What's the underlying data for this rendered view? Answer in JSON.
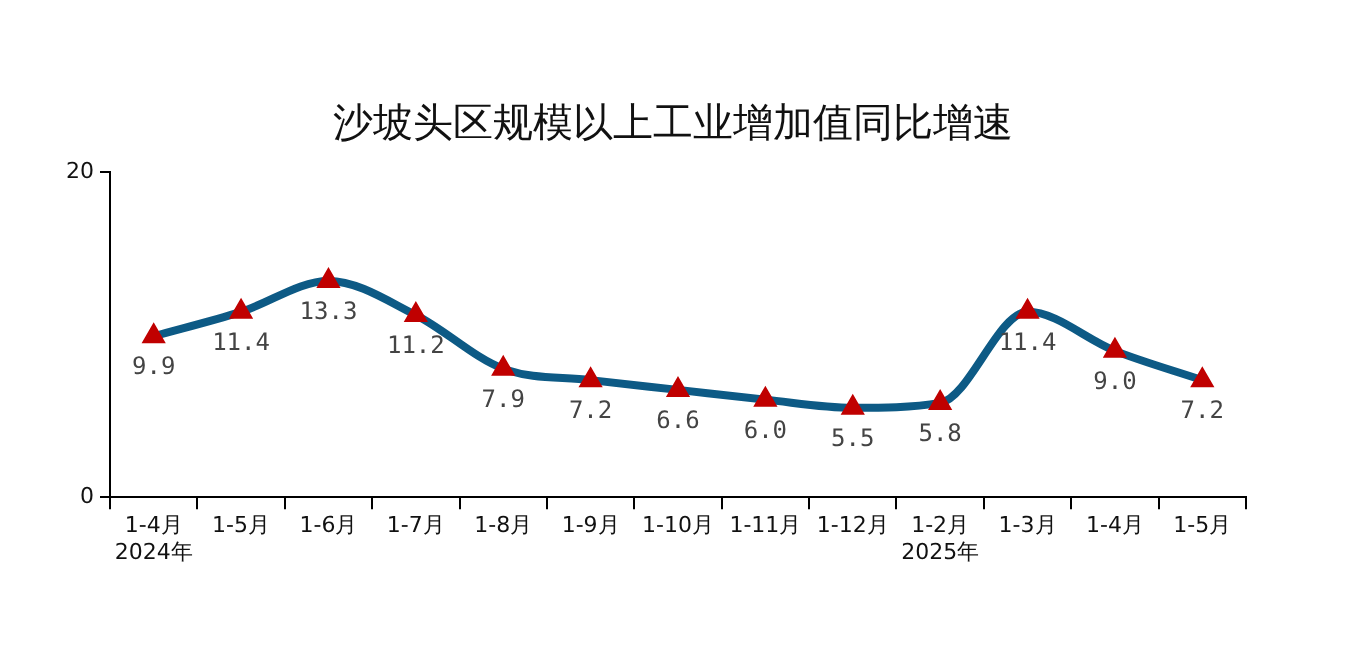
{
  "chart_data": {
    "type": "line",
    "title": "沙坡头区规模以上工业增加值同比增速",
    "categories": [
      "1-4月\n2024年",
      "1-5月",
      "1-6月",
      "1-7月",
      "1-8月",
      "1-9月",
      "1-10月",
      "1-11月",
      "1-12月",
      "1-2月\n2025年",
      "1-3月",
      "1-4月",
      "1-5月"
    ],
    "series": [
      {
        "color": "#0d5a85",
        "colors": [
          "#c00000",
          "#c00000",
          "#c00000",
          "#c00000",
          "#c00000",
          "#c00000",
          "#c00000",
          "#c00000",
          "#c00000",
          "#c00000",
          "#c00000",
          "#c00000",
          "#c00000"
        ],
        "values": [
          9.9,
          11.4,
          13.3,
          11.2,
          7.9,
          7.2,
          6.6,
          6.0,
          5.5,
          5.8,
          11.4,
          9.0,
          7.2
        ],
        "value_labels": [
          "9.9",
          "11.4",
          "13.3",
          "11.2",
          "7.9",
          "7.2",
          "6.6",
          "6.0",
          "5.5",
          "5.8",
          "11.4",
          "9.0",
          "7.2"
        ]
      }
    ],
    "ylim": [
      0,
      20
    ],
    "yticks": [
      0,
      20
    ],
    "grid": false,
    "legend": false,
    "marker": "triangle",
    "line_style": "solid"
  }
}
